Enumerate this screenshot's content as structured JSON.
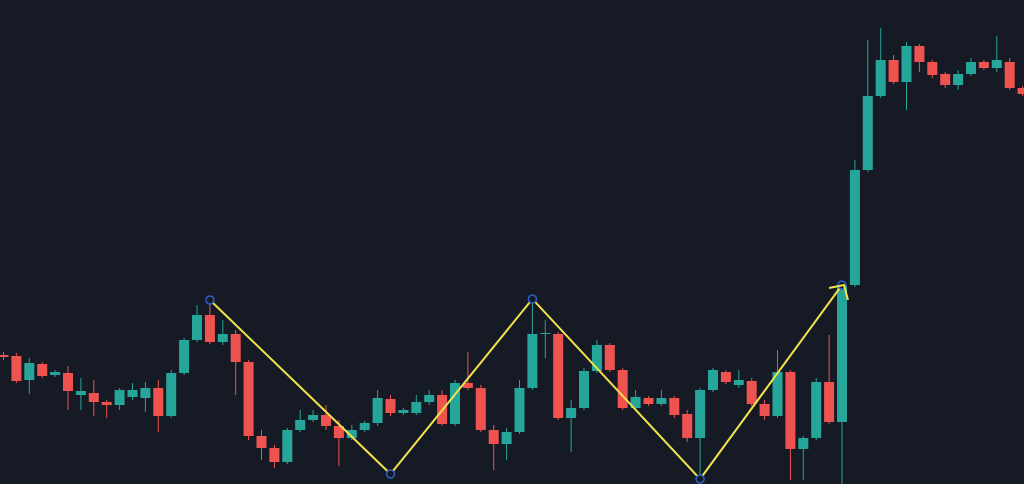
{
  "chart_data": {
    "type": "candlestick",
    "open": [
      129,
      128,
      104,
      120,
      109,
      111,
      89,
      91,
      82,
      79,
      87,
      86,
      96,
      68,
      111,
      144,
      169,
      142,
      150,
      122,
      48,
      36,
      22,
      54,
      64,
      69,
      58,
      46,
      54,
      61,
      85,
      71,
      71,
      82,
      89,
      60,
      101,
      96,
      54,
      40,
      52,
      96,
      150,
      150,
      66,
      76,
      113,
      139,
      114,
      76,
      86,
      80,
      86,
      70,
      46,
      94,
      112,
      99,
      103,
      80,
      68,
      112,
      35,
      46,
      102,
      62,
      199,
      314,
      388,
      424,
      402,
      438,
      422,
      410,
      399,
      410,
      422,
      416,
      422,
      396
    ],
    "high": [
      132,
      131,
      126,
      122,
      114,
      118,
      106,
      104,
      84,
      96,
      101,
      102,
      104,
      114,
      146,
      179,
      184,
      164,
      154,
      124,
      54,
      39,
      56,
      74,
      74,
      79,
      64,
      59,
      63,
      94,
      89,
      76,
      89,
      94,
      94,
      104,
      132,
      99,
      59,
      56,
      104,
      185,
      164,
      152,
      84,
      116,
      144,
      141,
      116,
      94,
      88,
      94,
      88,
      74,
      96,
      116,
      114,
      114,
      106,
      84,
      134,
      114,
      48,
      106,
      149,
      202,
      324,
      444,
      456,
      429,
      442,
      440,
      424,
      412,
      414,
      426,
      424,
      448,
      426,
      398
    ],
    "low": [
      124,
      101,
      90,
      106,
      107,
      74,
      74,
      68,
      66,
      74,
      84,
      72,
      52,
      66,
      109,
      142,
      140,
      139,
      89,
      44,
      24,
      16,
      20,
      52,
      62,
      54,
      18,
      44,
      52,
      58,
      68,
      69,
      69,
      79,
      58,
      58,
      94,
      52,
      14,
      24,
      50,
      94,
      126,
      64,
      32,
      74,
      111,
      112,
      74,
      74,
      78,
      78,
      66,
      42,
      5,
      92,
      100,
      96,
      78,
      64,
      66,
      4,
      4,
      44,
      60,
      0,
      197,
      312,
      386,
      400,
      374,
      412,
      406,
      396,
      394,
      408,
      414,
      412,
      394,
      388
    ],
    "close": [
      127,
      103,
      121,
      108,
      112,
      93,
      93,
      82,
      79,
      94,
      94,
      96,
      68,
      111,
      144,
      169,
      142,
      150,
      122,
      48,
      36,
      22,
      54,
      64,
      69,
      58,
      46,
      54,
      61,
      86,
      71,
      74,
      82,
      89,
      60,
      101,
      96,
      54,
      40,
      52,
      96,
      150,
      151,
      66,
      76,
      113,
      139,
      114,
      76,
      87,
      80,
      86,
      69,
      46,
      94,
      114,
      102,
      104,
      80,
      68,
      112,
      35,
      46,
      102,
      62,
      199,
      314,
      388,
      424,
      402,
      438,
      422,
      409,
      399,
      410,
      422,
      416,
      424,
      396,
      390
    ],
    "up_color": "#26a69a",
    "down_color": "#ef5350",
    "ylim": [
      0,
      484
    ],
    "zigzag": {
      "color": "#f2e34a",
      "marker_color": "#2f5fc4",
      "points": [
        [
          16,
          184
        ],
        [
          30,
          10
        ],
        [
          41,
          185
        ],
        [
          54,
          5
        ],
        [
          65,
          199
        ]
      ]
    }
  }
}
